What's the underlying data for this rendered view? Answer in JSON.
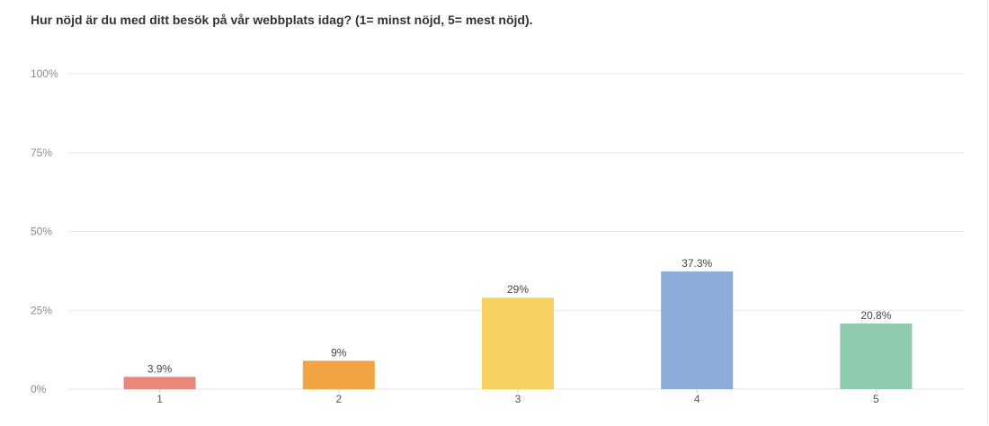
{
  "question": {
    "text": "Hur nöjd är du med ditt besök på vår webbplats idag? (1= minst nöjd, 5= mest nöjd)."
  },
  "chart_data": {
    "type": "bar",
    "title": "Hur nöjd är du med ditt besök på vår webbplats idag? (1= minst nöjd, 5= mest nöjd).",
    "categories": [
      "1",
      "2",
      "3",
      "4",
      "5"
    ],
    "values": [
      3.9,
      9,
      29,
      37.3,
      20.8
    ],
    "value_labels": [
      "3.9%",
      "9%",
      "29%",
      "37.3%",
      "20.8%"
    ],
    "colors": [
      "#e8877a",
      "#f2a444",
      "#f7d062",
      "#8cacd9",
      "#8ecbae"
    ],
    "ylim": [
      0,
      100
    ],
    "yticks": [
      0,
      25,
      50,
      75,
      100
    ],
    "ytick_labels": [
      "0%",
      "25%",
      "50%",
      "75%",
      "100%"
    ],
    "xlabel": "",
    "ylabel": "",
    "grid": true,
    "legend": "none"
  }
}
